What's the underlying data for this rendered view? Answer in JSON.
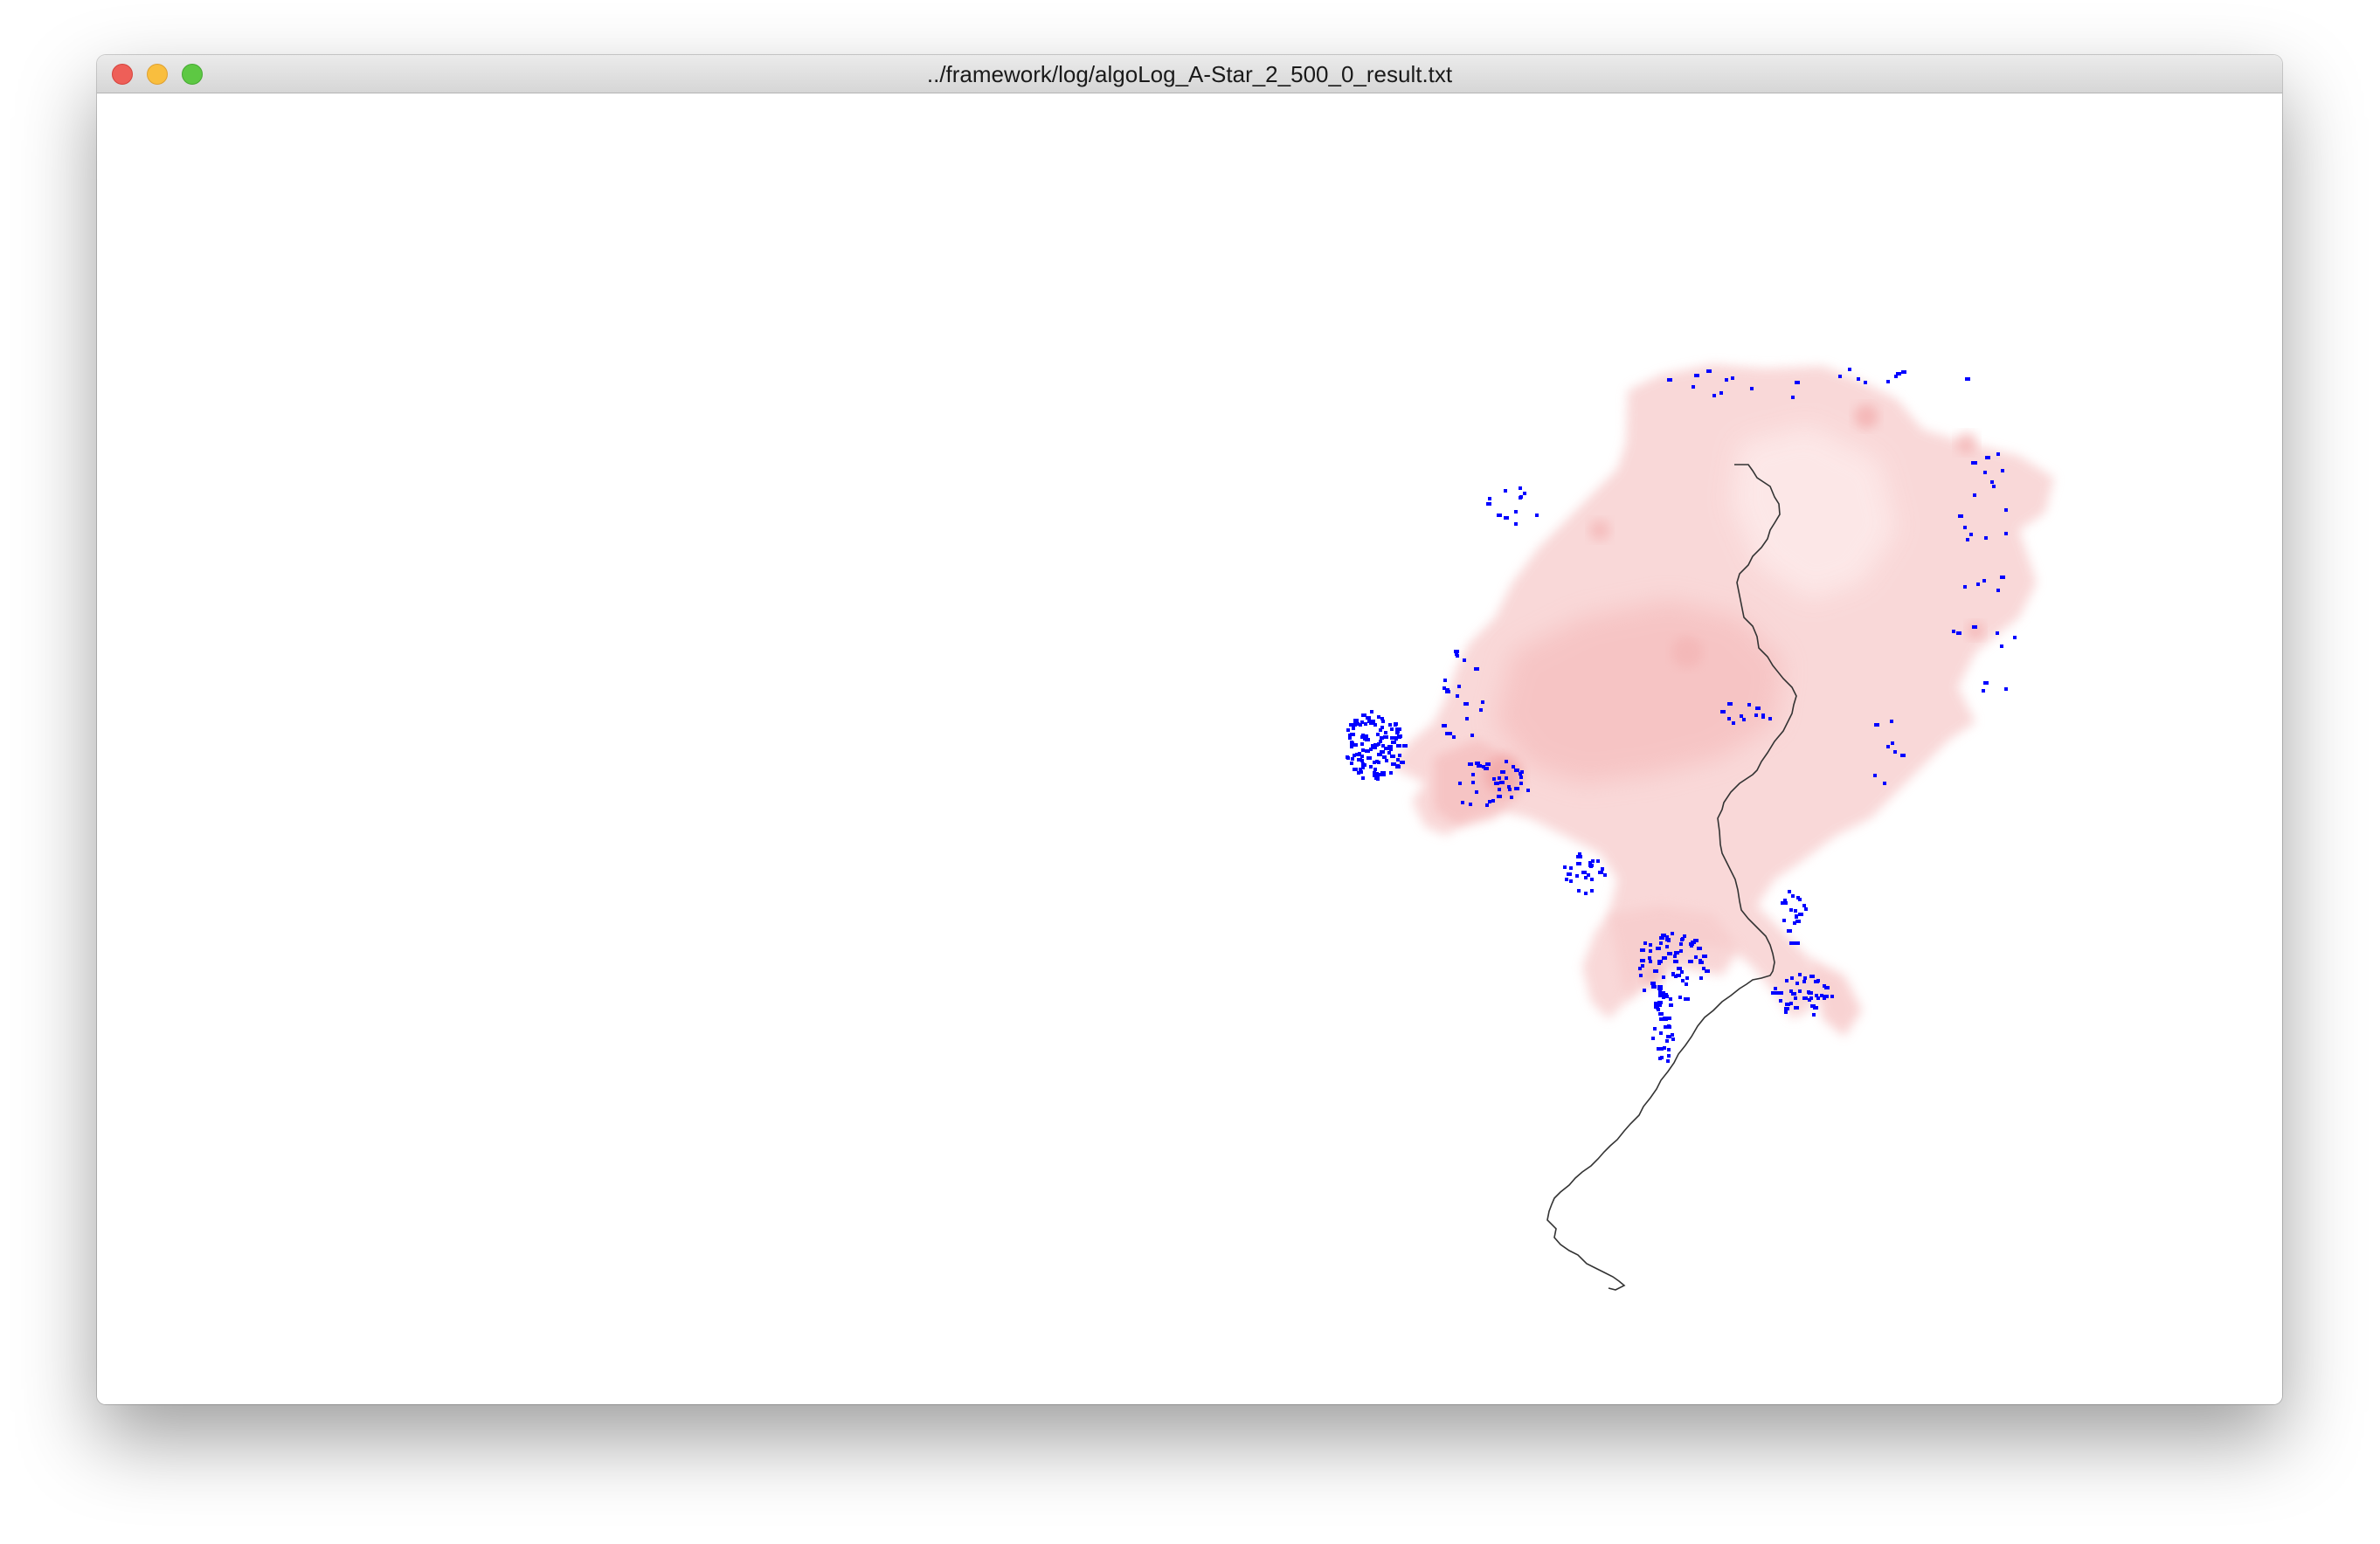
{
  "window": {
    "title": "../framework/log/algoLog_A-Star_2_500_0_result.txt",
    "buttons": [
      "close",
      "minimize",
      "zoom"
    ]
  },
  "visualization": {
    "description_colors": {
      "explored_region": "#f7c6c6",
      "explored_region_dense": "#f2a0a0",
      "frontier_nodes": "#0000ff",
      "path": "#333333",
      "background": "#ffffff"
    }
  }
}
